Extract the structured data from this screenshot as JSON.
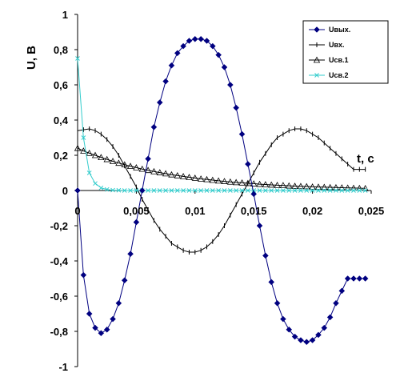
{
  "chart_data": {
    "type": "line",
    "title": "",
    "xlabel": "t, c",
    "ylabel": "U, B",
    "xlim": [
      0,
      0.025
    ],
    "ylim": [
      -1,
      1
    ],
    "x_ticks": [
      "0",
      "0,005",
      "0,01",
      "0,015",
      "0,02",
      "0,025"
    ],
    "x_tick_values": [
      0,
      0.005,
      0.01,
      0.015,
      0.02,
      0.025
    ],
    "y_ticks": [
      "1",
      "0,8",
      "0,6",
      "0,4",
      "0,2",
      "0",
      "-0,2",
      "-0,4",
      "-0,6",
      "-0,8",
      "-1"
    ],
    "y_tick_values": [
      1,
      0.8,
      0.6,
      0.4,
      0.2,
      0,
      -0.2,
      -0.4,
      -0.6,
      -0.8,
      -1
    ],
    "grid": false,
    "legend_position": "top-right",
    "series": [
      {
        "name": "Uвых.",
        "color": "#000080",
        "marker": "diamond-filled",
        "x": [
          0,
          0.0005,
          0.001,
          0.0015,
          0.002,
          0.0025,
          0.003,
          0.0035,
          0.004,
          0.0045,
          0.005,
          0.0055,
          0.006,
          0.0065,
          0.007,
          0.0075,
          0.008,
          0.0085,
          0.009,
          0.0095,
          0.01,
          0.0105,
          0.011,
          0.0115,
          0.012,
          0.0125,
          0.013,
          0.0135,
          0.014,
          0.0145,
          0.015,
          0.0155,
          0.016,
          0.0165,
          0.017,
          0.0175,
          0.018,
          0.0185,
          0.019,
          0.0195,
          0.02,
          0.0205,
          0.021,
          0.0215,
          0.022,
          0.0225,
          0.023,
          0.0235,
          0.024,
          0.0245
        ],
        "y": [
          0,
          -0.48,
          -0.7,
          -0.78,
          -0.81,
          -0.79,
          -0.73,
          -0.64,
          -0.51,
          -0.36,
          -0.18,
          0.0,
          0.18,
          0.36,
          0.5,
          0.62,
          0.71,
          0.78,
          0.82,
          0.85,
          0.86,
          0.86,
          0.85,
          0.82,
          0.77,
          0.7,
          0.6,
          0.47,
          0.32,
          0.15,
          -0.02,
          -0.2,
          -0.37,
          -0.52,
          -0.64,
          -0.73,
          -0.79,
          -0.83,
          -0.85,
          -0.86,
          -0.85,
          -0.82,
          -0.78,
          -0.72,
          -0.64,
          -0.57,
          -0.5,
          -0.5,
          -0.5,
          -0.5
        ]
      },
      {
        "name": "Uвх.",
        "color": "#000000",
        "marker": "dash",
        "x": [
          0,
          0.0005,
          0.001,
          0.0015,
          0.002,
          0.0025,
          0.003,
          0.0035,
          0.004,
          0.0045,
          0.005,
          0.0055,
          0.006,
          0.0065,
          0.007,
          0.0075,
          0.008,
          0.0085,
          0.009,
          0.0095,
          0.01,
          0.0105,
          0.011,
          0.0115,
          0.012,
          0.0125,
          0.013,
          0.0135,
          0.014,
          0.0145,
          0.015,
          0.0155,
          0.016,
          0.0165,
          0.017,
          0.0175,
          0.018,
          0.0185,
          0.019,
          0.0195,
          0.02,
          0.0205,
          0.021,
          0.0215,
          0.022,
          0.0225,
          0.023,
          0.0235,
          0.024,
          0.0245
        ],
        "y": [
          0.34,
          0.345,
          0.35,
          0.34,
          0.32,
          0.29,
          0.25,
          0.2,
          0.14,
          0.08,
          0.02,
          -0.05,
          -0.11,
          -0.17,
          -0.22,
          -0.26,
          -0.3,
          -0.32,
          -0.34,
          -0.35,
          -0.35,
          -0.34,
          -0.32,
          -0.29,
          -0.25,
          -0.2,
          -0.14,
          -0.08,
          -0.02,
          0.04,
          0.1,
          0.16,
          0.21,
          0.26,
          0.3,
          0.32,
          0.34,
          0.35,
          0.35,
          0.34,
          0.32,
          0.3,
          0.27,
          0.24,
          0.21,
          0.18,
          0.15,
          0.12,
          0.12,
          0.12
        ]
      },
      {
        "name": "Uсв.1",
        "color": "#000000",
        "marker": "triangle-open",
        "x": [
          0,
          0.0005,
          0.001,
          0.0015,
          0.002,
          0.0025,
          0.003,
          0.0035,
          0.004,
          0.0045,
          0.005,
          0.0055,
          0.006,
          0.0065,
          0.007,
          0.0075,
          0.008,
          0.0085,
          0.009,
          0.0095,
          0.01,
          0.0105,
          0.011,
          0.0115,
          0.012,
          0.0125,
          0.013,
          0.0135,
          0.014,
          0.0145,
          0.015,
          0.0155,
          0.016,
          0.0165,
          0.017,
          0.0175,
          0.018,
          0.0185,
          0.019,
          0.0195,
          0.02,
          0.0205,
          0.021,
          0.0215,
          0.022,
          0.0225,
          0.023,
          0.0235,
          0.024,
          0.0245
        ],
        "y": [
          0.24,
          0.225,
          0.212,
          0.2,
          0.188,
          0.177,
          0.166,
          0.156,
          0.147,
          0.138,
          0.13,
          0.122,
          0.115,
          0.108,
          0.102,
          0.096,
          0.09,
          0.085,
          0.08,
          0.075,
          0.071,
          0.066,
          0.063,
          0.059,
          0.055,
          0.052,
          0.049,
          0.046,
          0.044,
          0.041,
          0.039,
          0.036,
          0.034,
          0.032,
          0.03,
          0.029,
          0.027,
          0.025,
          0.024,
          0.023,
          0.021,
          0.02,
          0.019,
          0.018,
          0.017,
          0.016,
          0.015,
          0.014,
          0.013,
          0.012
        ]
      },
      {
        "name": "Uсв.2",
        "color": "#33CCCC",
        "marker": "x",
        "x": [
          0,
          0.0005,
          0.001,
          0.0015,
          0.002,
          0.0025,
          0.003,
          0.0035,
          0.004,
          0.0045,
          0.005,
          0.0055,
          0.006,
          0.0065,
          0.007,
          0.0075,
          0.008,
          0.0085,
          0.009,
          0.0095,
          0.01,
          0.0105,
          0.011,
          0.0115,
          0.012,
          0.0125,
          0.013,
          0.0135,
          0.014,
          0.0145,
          0.015,
          0.0155,
          0.016,
          0.0165,
          0.017,
          0.0175,
          0.018,
          0.0185,
          0.019,
          0.0195,
          0.02,
          0.0205,
          0.021,
          0.0215,
          0.022,
          0.0225,
          0.023,
          0.0235,
          0.024,
          0.0245
        ],
        "y": [
          0.75,
          0.3,
          0.1,
          0.04,
          0.015,
          0.006,
          0.002,
          0.001,
          0,
          0,
          0,
          0,
          0,
          0,
          0,
          0,
          0,
          0,
          0,
          0,
          0,
          0,
          0,
          0,
          0,
          0,
          0,
          0,
          0,
          0,
          0,
          0,
          0,
          0,
          0,
          0,
          0,
          0,
          0,
          0,
          0,
          0,
          0,
          0,
          0,
          0,
          0,
          0,
          0,
          0
        ]
      }
    ]
  }
}
